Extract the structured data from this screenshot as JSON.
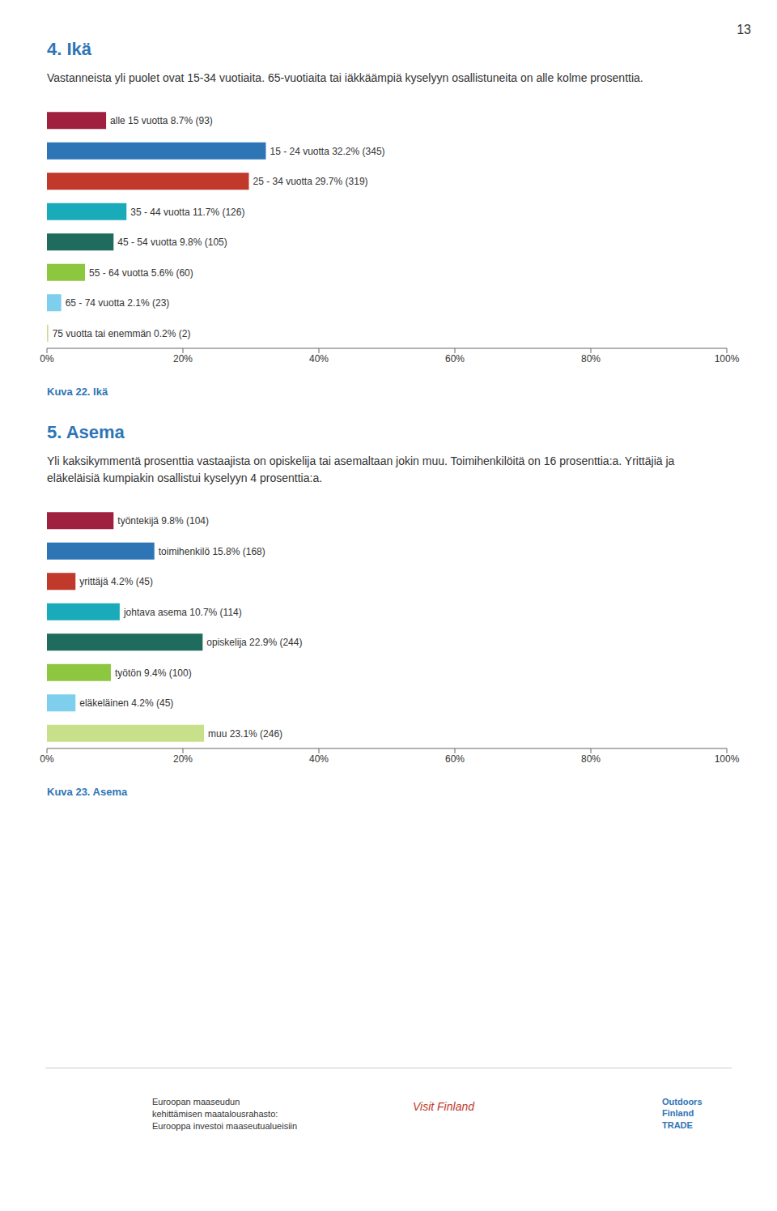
{
  "annotations": [
    "13",
    "Euroopan maaseudun\nkehittämisen maatalousrahasto:\nEurooppa investoi maaseutualueisiin",
    "Visit Finland",
    "Outdoors\nFinland\nTRADE"
  ],
  "chart_data": [
    {
      "type": "bar",
      "orientation": "horizontal",
      "title": "Kuva 22. Ikä",
      "annotations": [
        "4. Ikä",
        "Vastanneista yli puolet ovat 15-34 vuotiaita. 65-vuotiaita tai iäkkäämpiä kyselyyn osallistuneita on alle kolme prosenttia."
      ],
      "categories": [
        "alle 15 vuotta 8.7% (93)",
        "15 - 24 vuotta 32.2% (345)",
        "25 - 34 vuotta 29.7% (319)",
        "35 - 44 vuotta 11.7% (126)",
        "45 - 54 vuotta 9.8% (105)",
        "55 - 64 vuotta 5.6% (60)",
        "65 - 74 vuotta 2.1% (23)",
        "75 vuotta tai enemmän 0.2% (2)"
      ],
      "values": [
        8.7,
        32.2,
        29.7,
        11.7,
        9.8,
        5.6,
        2.1,
        0.2
      ],
      "colors": [
        "#A0213F",
        "#2E75B6",
        "#C0392B",
        "#1AABBA",
        "#1F6B5E",
        "#8DC63F",
        "#7ECFED",
        "#C8E08A"
      ],
      "xlim": [
        0,
        100
      ],
      "xticks": [
        {
          "value": 0,
          "label": "0%"
        },
        {
          "value": 20,
          "label": "20%"
        },
        {
          "value": 40,
          "label": "40%"
        },
        {
          "value": 60,
          "label": "60%"
        },
        {
          "value": 80,
          "label": "80%"
        },
        {
          "value": 100,
          "label": "100%"
        }
      ],
      "grid": false,
      "tick_labels": "x"
    },
    {
      "type": "bar",
      "orientation": "horizontal",
      "title": "Kuva 23. Asema",
      "annotations": [
        "5. Asema",
        "Yli kaksikymmentä prosenttia vastaajista on opiskelija tai asemaltaan jokin muu. Toimihenkilöitä on 16 prosenttia:a. Yrittäjiä ja eläkeläisiä kumpiakin osallistui kyselyyn 4 prosenttia:a."
      ],
      "categories": [
        "työntekijä 9.8% (104)",
        "toimihenkilö 15.8% (168)",
        "yrittäjä 4.2% (45)",
        "johtava asema 10.7% (114)",
        "opiskelija 22.9% (244)",
        "työtön 9.4% (100)",
        "eläkeläinen 4.2% (45)",
        "muu 23.1% (246)"
      ],
      "values": [
        9.8,
        15.8,
        4.2,
        10.7,
        22.9,
        9.4,
        4.2,
        23.1
      ],
      "colors": [
        "#A0213F",
        "#2E75B6",
        "#C0392B",
        "#1AABBA",
        "#1F6B5E",
        "#8DC63F",
        "#7ECFED",
        "#C8E08A"
      ],
      "xlim": [
        0,
        100
      ],
      "xticks": [
        {
          "value": 0,
          "label": "0%"
        },
        {
          "value": 20,
          "label": "20%"
        },
        {
          "value": 40,
          "label": "40%"
        },
        {
          "value": 60,
          "label": "60%"
        },
        {
          "value": 80,
          "label": "80%"
        },
        {
          "value": 100,
          "label": "100%"
        }
      ],
      "grid": false,
      "tick_labels": "x"
    }
  ]
}
